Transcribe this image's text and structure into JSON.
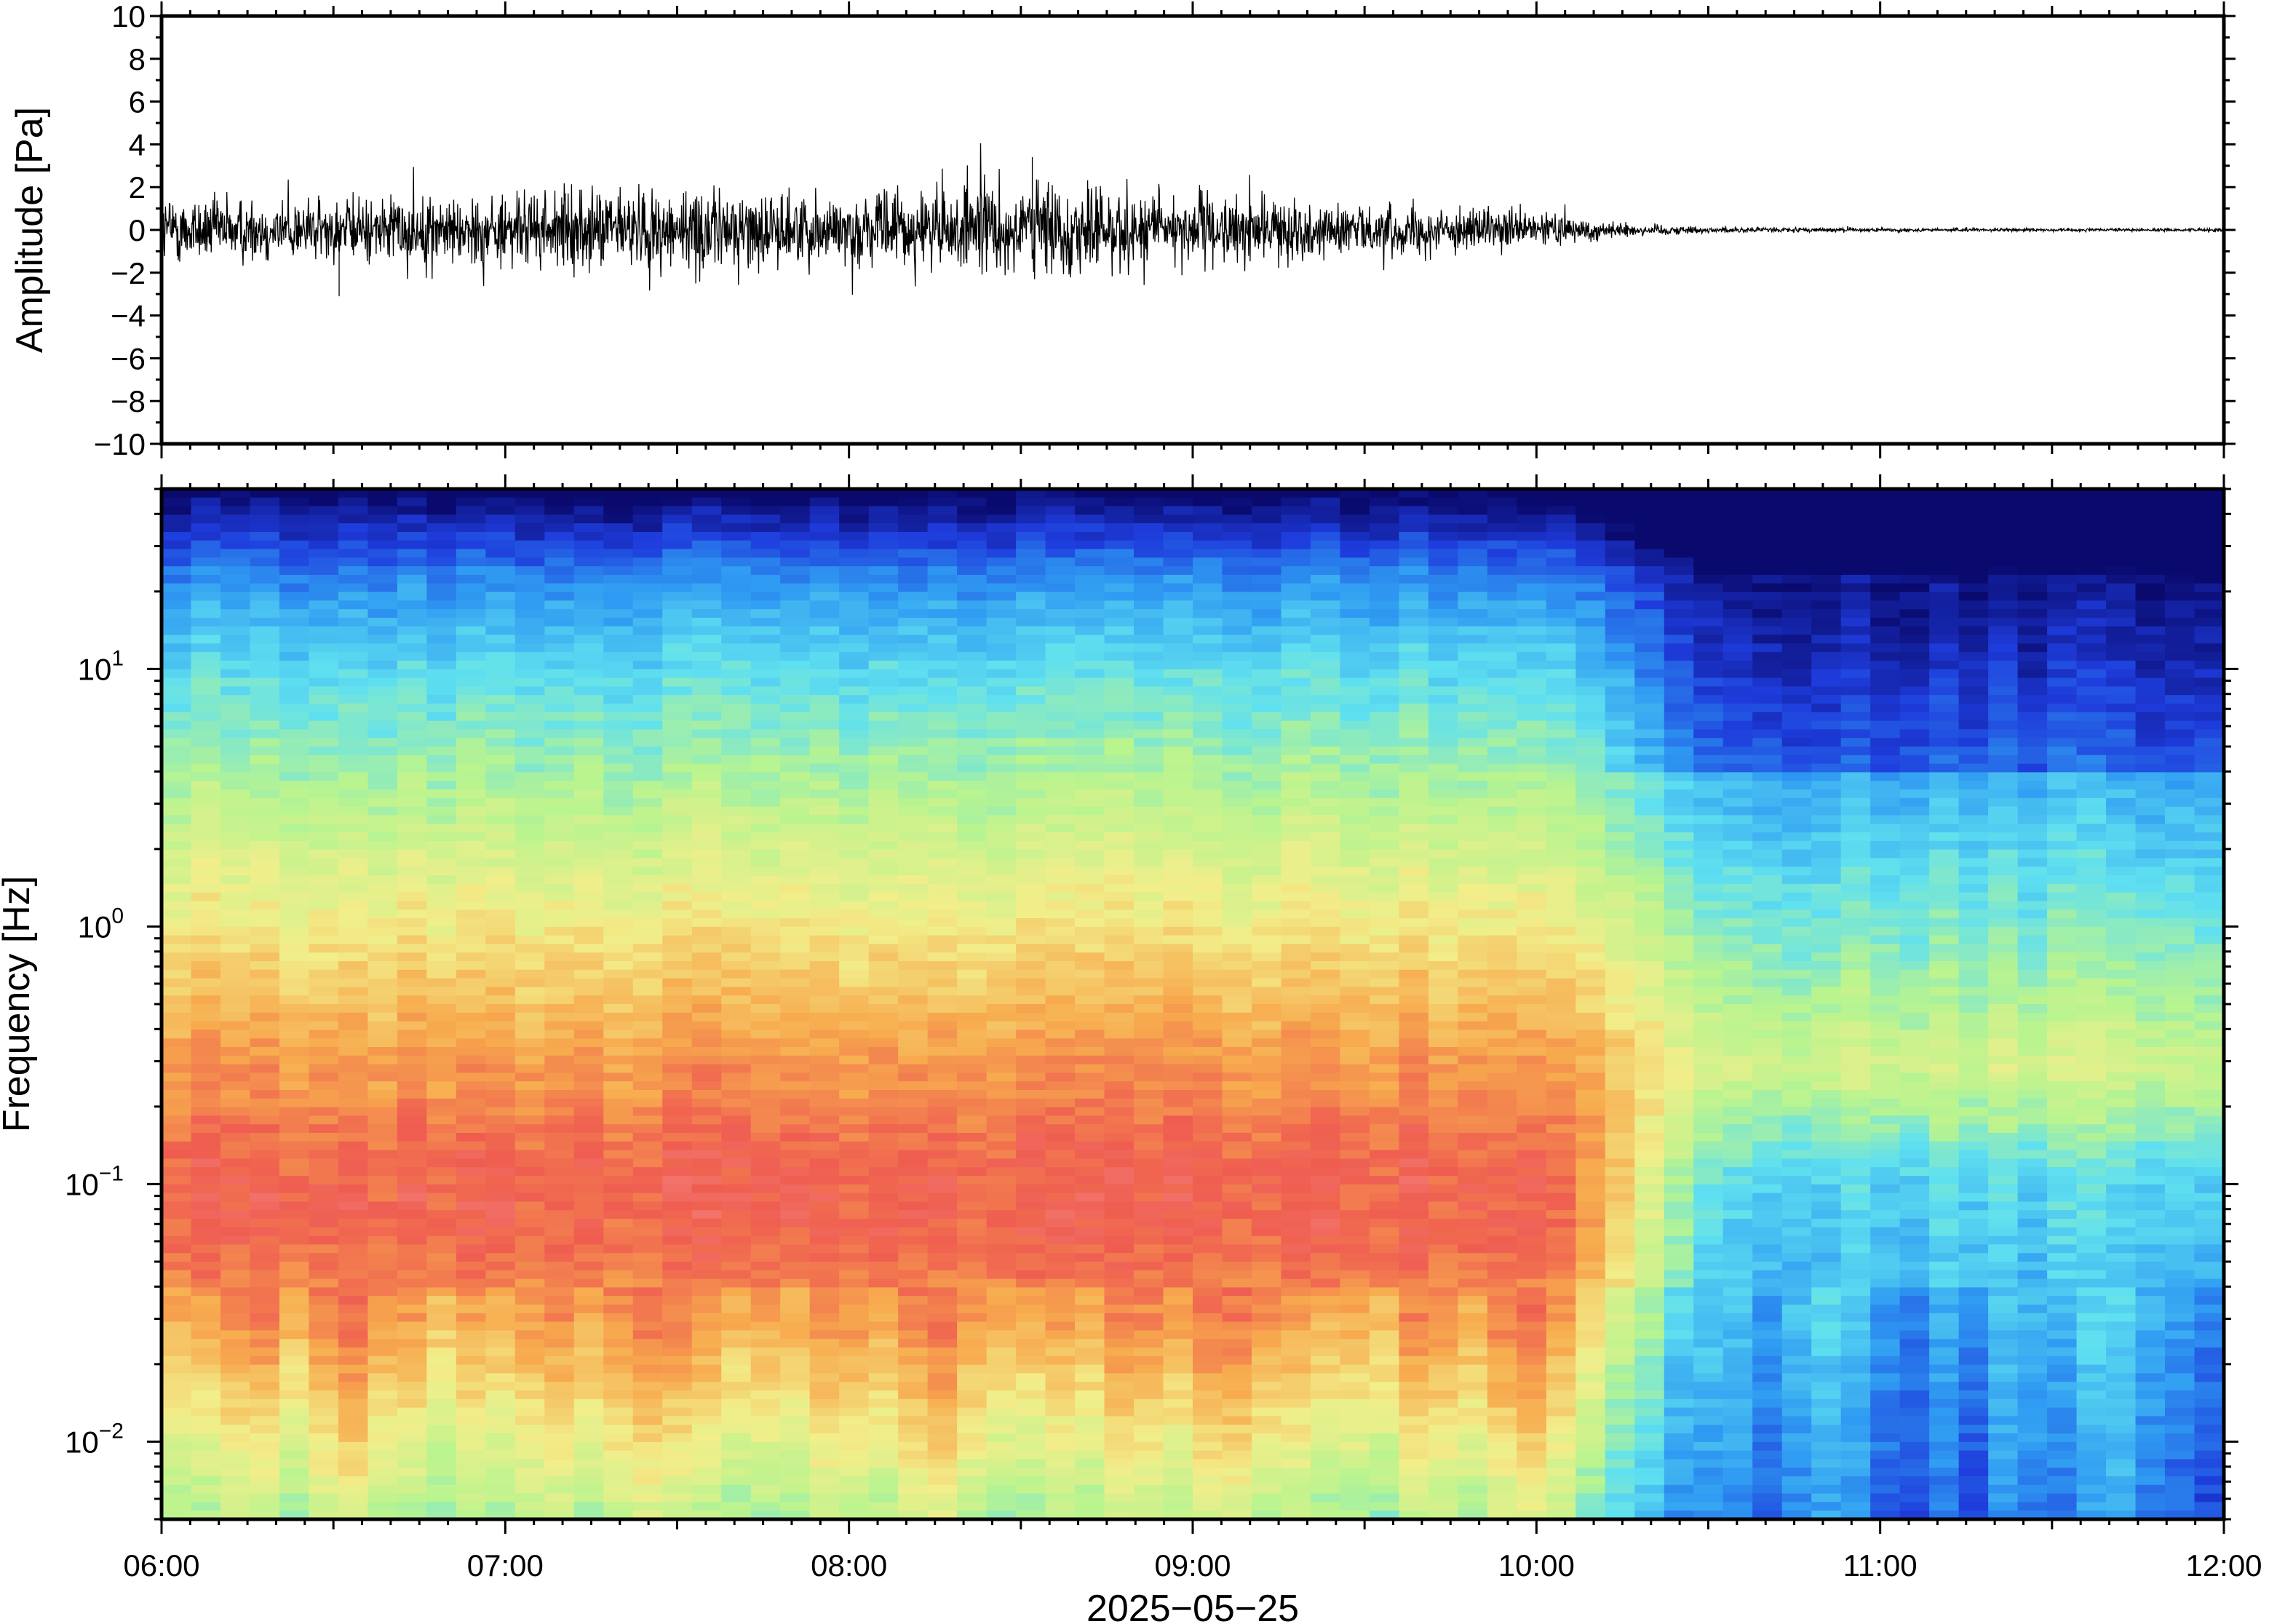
{
  "chart_data": [
    {
      "type": "line",
      "ylabel": "Amplitude [Pa]",
      "ylim": [
        -10,
        10
      ],
      "yticks": [
        "10",
        "8",
        "6",
        "4",
        "2",
        "0",
        "−2",
        "−4",
        "−6",
        "−8",
        "−10"
      ],
      "xlim": [
        "06:00",
        "12:00"
      ],
      "series": [
        {
          "envelope_time": [
            "06:00",
            "06:30",
            "07:00",
            "07:30",
            "08:00",
            "08:30",
            "09:00",
            "09:30",
            "10:00",
            "10:15",
            "10:30",
            "11:00",
            "11:30",
            "12:00"
          ],
          "envelope_peak_pa": [
            2.3,
            2.1,
            2.4,
            2.9,
            2.2,
            3.3,
            2.4,
            1.6,
            1.2,
            0.5,
            0.2,
            0.12,
            0.1,
            0.1
          ],
          "max_spike": {
            "time": "08:32",
            "value": 3.4
          },
          "min_spike": {
            "time": "06:31",
            "value": -3.1
          }
        }
      ],
      "grid": false
    },
    {
      "type": "heatmap",
      "ylabel": "Frequency [Hz]",
      "yscale": "log",
      "ylim": [
        0.005,
        50
      ],
      "yticks": [
        {
          "base": "10",
          "exp": "1",
          "value": 10
        },
        {
          "base": "10",
          "exp": "0",
          "value": 1
        },
        {
          "base": "10",
          "exp": "−1",
          "value": 0.1
        },
        {
          "base": "10",
          "exp": "−2",
          "value": 0.01
        }
      ],
      "xlabel": "2025−05−25",
      "xticks": [
        "06:00",
        "07:00",
        "08:00",
        "09:00",
        "10:00",
        "11:00",
        "12:00"
      ],
      "xlim": [
        "06:00",
        "12:00"
      ],
      "colormap": [
        "#0a0a6e",
        "#1e3cdc",
        "#2f9bf2",
        "#5fe0f0",
        "#b9f48f",
        "#f2ee8a",
        "#f7ab4e",
        "#ef5d50",
        "#f79a9a"
      ],
      "description_regions": {
        "high_power_band_hz": [
          0.04,
          0.3
        ],
        "quiet_after_time": "10:15",
        "dark_top_after_time": "10:00"
      },
      "grid": false
    }
  ]
}
